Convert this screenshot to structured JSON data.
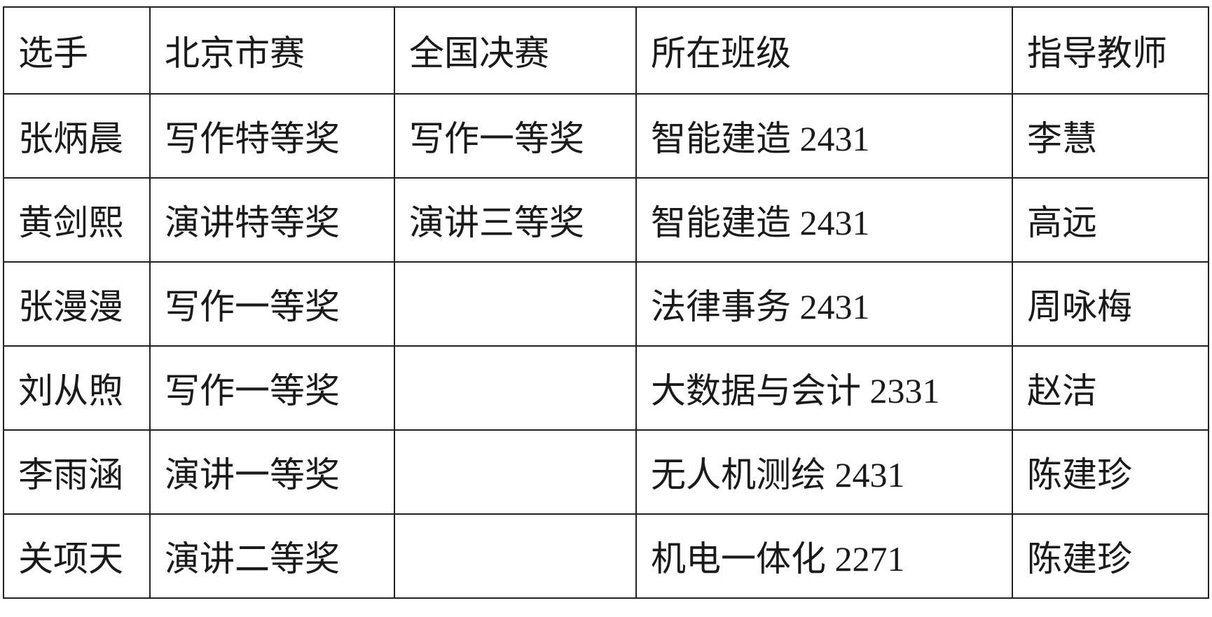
{
  "table": {
    "headers": [
      "选手",
      "北京市赛",
      "全国决赛",
      "所在班级",
      "指导教师"
    ],
    "rows": [
      [
        "张炳晨",
        "写作特等奖",
        "写作一等奖",
        "智能建造 2431",
        "李慧"
      ],
      [
        "黄剑熙",
        "演讲特等奖",
        "演讲三等奖",
        "智能建造 2431",
        "高远"
      ],
      [
        "张漫漫",
        "写作一等奖",
        "",
        "法律事务 2431",
        "周咏梅"
      ],
      [
        "刘从煦",
        "写作一等奖",
        "",
        "大数据与会计 2331",
        "赵洁"
      ],
      [
        "李雨涵",
        "演讲一等奖",
        "",
        "无人机测绘 2431",
        "陈建珍"
      ],
      [
        "关项天",
        "演讲二等奖",
        "",
        "机电一体化 2271",
        "陈建珍"
      ]
    ]
  }
}
